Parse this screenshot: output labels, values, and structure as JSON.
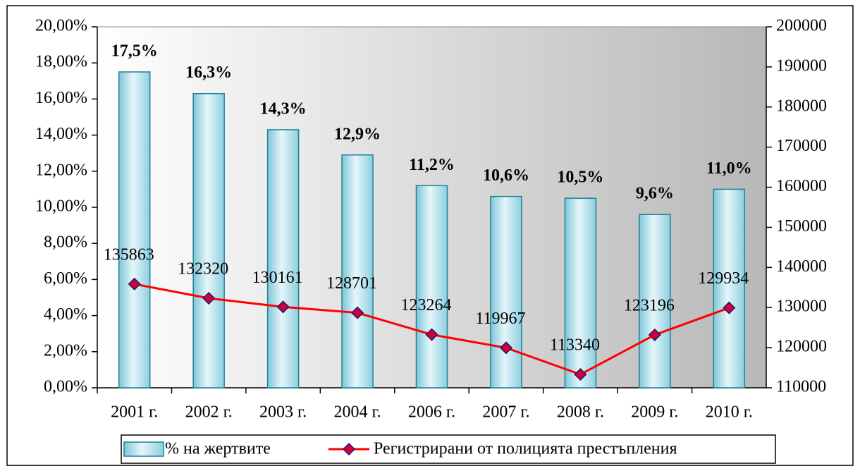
{
  "chart_data": {
    "type": "bar",
    "categories": [
      "2001 г.",
      "2002 г.",
      "2003 г.",
      "2004 г.",
      "2006 г.",
      "2007 г.",
      "2008 г.",
      "2009 г.",
      "2010 г."
    ],
    "series": [
      {
        "name": "% на жертвите",
        "type": "bar",
        "axis": "y",
        "color": "#9fd6e4",
        "values": [
          17.5,
          16.3,
          14.3,
          12.9,
          11.2,
          10.6,
          10.5,
          9.6,
          11.0
        ],
        "value_labels": [
          "17,5%",
          "16,3%",
          "14,3%",
          "12,9%",
          "11,2%",
          "10,6%",
          "10,5%",
          "9,6%",
          "11,0%"
        ]
      },
      {
        "name": "Регистрирани от полицията престъпления",
        "type": "line",
        "axis": "y2",
        "color": "#ff0000",
        "values": [
          135863,
          132320,
          130161,
          128701,
          123264,
          119967,
          113340,
          123196,
          129934
        ]
      }
    ],
    "ylim": [
      0,
      20
    ],
    "yticks": [
      {
        "value": 0,
        "label": "0,00%"
      },
      {
        "value": 2,
        "label": "2,00%"
      },
      {
        "value": 4,
        "label": "4,00%"
      },
      {
        "value": 6,
        "label": "6,00%"
      },
      {
        "value": 8,
        "label": "8,00%"
      },
      {
        "value": 10,
        "label": "10,00%"
      },
      {
        "value": 12,
        "label": "12,00%"
      },
      {
        "value": 14,
        "label": "14,00%"
      },
      {
        "value": 16,
        "label": "16,00%"
      },
      {
        "value": 18,
        "label": "18,00%"
      },
      {
        "value": 20,
        "label": "20,00%"
      }
    ],
    "y2lim": [
      110000,
      200000
    ],
    "y2ticks": [
      110000,
      120000,
      130000,
      140000,
      150000,
      160000,
      170000,
      180000,
      190000,
      200000
    ],
    "grid": false,
    "legend": "bottom"
  }
}
